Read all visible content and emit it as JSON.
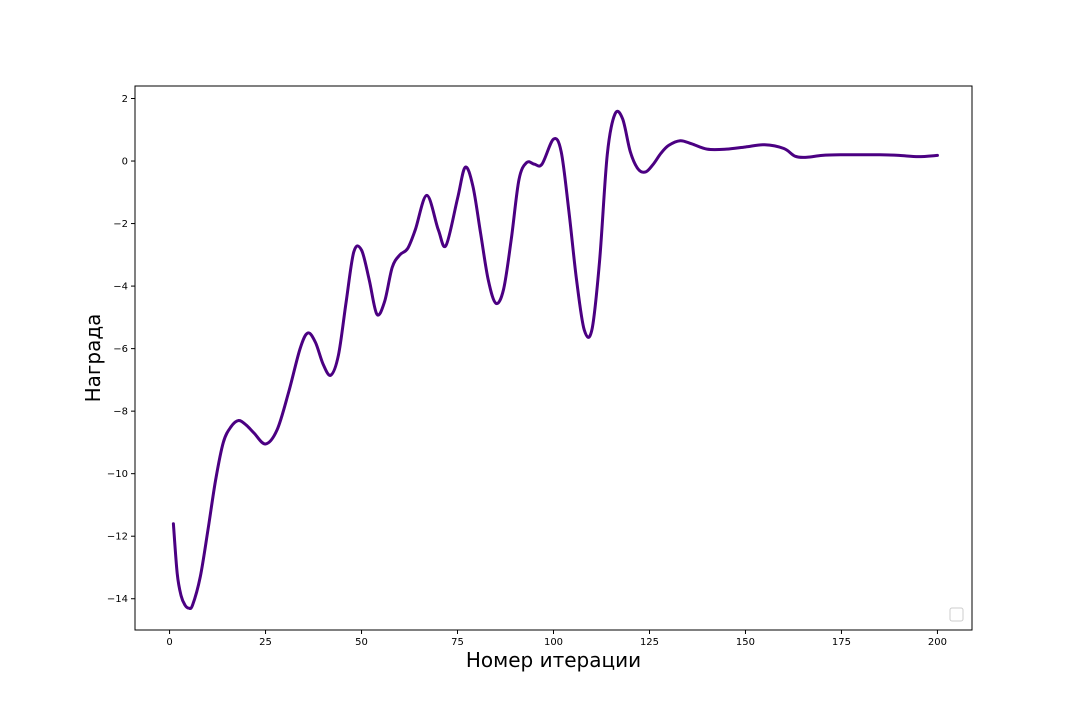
{
  "chart_data": {
    "type": "line",
    "title": "",
    "xlabel": "Номер итерации",
    "ylabel": "Награда",
    "xlim": [
      -9,
      209
    ],
    "ylim": [
      -15,
      2.4
    ],
    "xticks": [
      0,
      25,
      50,
      75,
      100,
      125,
      150,
      175,
      200
    ],
    "yticks": [
      -14,
      -12,
      -10,
      -8,
      -6,
      -4,
      -2,
      0,
      2
    ],
    "grid": false,
    "legend": {
      "placement": "bottom-right",
      "entries": []
    },
    "series": [
      {
        "color": "#4b0082",
        "x": [
          1,
          2,
          3,
          4,
          5,
          6,
          8,
          10,
          12,
          14,
          16,
          18,
          20,
          22,
          25,
          28,
          31,
          34,
          36,
          38,
          40,
          42,
          44,
          46,
          48,
          50,
          52,
          54,
          56,
          58,
          60,
          62,
          64,
          67,
          70,
          72,
          75,
          77,
          79,
          81,
          83,
          85,
          87,
          89,
          91,
          93,
          95,
          97,
          100,
          102,
          104,
          106,
          108,
          110,
          112,
          114,
          116,
          118,
          120,
          122,
          124,
          126,
          128,
          130,
          133,
          136,
          140,
          145,
          150,
          155,
          160,
          163,
          166,
          170,
          175,
          180,
          185,
          190,
          195,
          200
        ],
        "values": [
          -11.6,
          -13.2,
          -13.9,
          -14.2,
          -14.3,
          -14.2,
          -13.3,
          -11.8,
          -10.2,
          -9.0,
          -8.5,
          -8.3,
          -8.45,
          -8.7,
          -9.05,
          -8.6,
          -7.4,
          -6.0,
          -5.5,
          -5.8,
          -6.5,
          -6.85,
          -6.2,
          -4.5,
          -2.9,
          -2.85,
          -3.8,
          -4.9,
          -4.5,
          -3.4,
          -3.0,
          -2.8,
          -2.2,
          -1.1,
          -2.2,
          -2.7,
          -1.2,
          -0.2,
          -0.8,
          -2.3,
          -3.8,
          -4.55,
          -4.1,
          -2.5,
          -0.6,
          -0.05,
          -0.1,
          -0.1,
          0.7,
          0.3,
          -1.6,
          -3.8,
          -5.4,
          -5.4,
          -3.2,
          0.2,
          1.5,
          1.35,
          0.3,
          -0.25,
          -0.35,
          -0.1,
          0.25,
          0.5,
          0.65,
          0.55,
          0.38,
          0.38,
          0.45,
          0.52,
          0.4,
          0.15,
          0.12,
          0.18,
          0.2,
          0.2,
          0.2,
          0.18,
          0.14,
          0.18
        ]
      }
    ]
  }
}
